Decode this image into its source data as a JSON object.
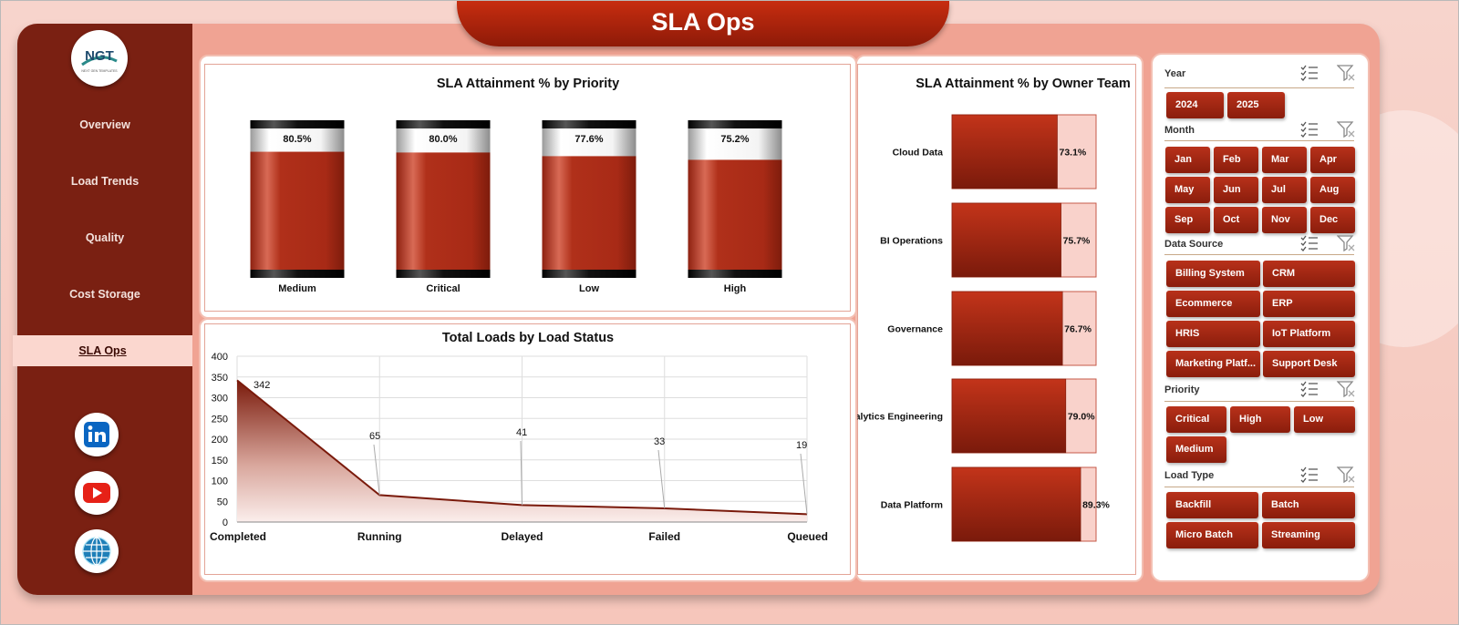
{
  "dashboard": {
    "title": "SLA Ops",
    "logo_text": "NGT",
    "logo_subtext": "NEXT GEN TEMPLATES"
  },
  "nav": {
    "items": [
      "Overview",
      "Load Trends",
      "Quality",
      "Cost Storage",
      "SLA Ops"
    ],
    "active": "SLA Ops"
  },
  "social": [
    "linkedin-icon",
    "youtube-icon",
    "globe-icon"
  ],
  "colors": {
    "accent": "#b2321a",
    "sidebar": "#7a2012",
    "panel": "#f0a393",
    "track": "#f9d2cb"
  },
  "filters": {
    "year": {
      "label": "Year",
      "options": [
        "2024",
        "2025"
      ]
    },
    "month": {
      "label": "Month",
      "options": [
        "Jan",
        "Feb",
        "Mar",
        "Apr",
        "May",
        "Jun",
        "Jul",
        "Aug",
        "Sep",
        "Oct",
        "Nov",
        "Dec"
      ]
    },
    "data_source": {
      "label": "Data Source",
      "options": [
        "Billing System",
        "CRM",
        "Ecommerce",
        "ERP",
        "HRIS",
        "IoT Platform",
        "Marketing Platf...",
        "Support Desk"
      ]
    },
    "priority": {
      "label": "Priority",
      "options": [
        "Critical",
        "High",
        "Low",
        "Medium"
      ]
    },
    "load_type": {
      "label": "Load Type",
      "options": [
        "Backfill",
        "Batch",
        "Micro Batch",
        "Streaming"
      ]
    }
  },
  "chart_data": [
    {
      "type": "bar",
      "title": "SLA Attainment % by Priority",
      "categories": [
        "Medium",
        "Critical",
        "Low",
        "High"
      ],
      "values": [
        80.5,
        80.0,
        77.6,
        75.2
      ],
      "data_labels": [
        "80.5%",
        "80.0%",
        "77.6%",
        "75.2%"
      ]
    },
    {
      "type": "bar",
      "orientation": "horizontal",
      "title": "SLA Attainment % by Owner Team",
      "categories": [
        "Cloud Data",
        "BI Operations",
        "Governance",
        "Analytics Engineering",
        "Data Platform"
      ],
      "values": [
        73.1,
        75.7,
        76.7,
        79.0,
        89.3
      ],
      "data_labels": [
        "73.1%",
        "75.7%",
        "76.7%",
        "79.0%",
        "89.3%"
      ]
    },
    {
      "type": "area",
      "title": "Total Loads by Load Status",
      "categories": [
        "Completed",
        "Running",
        "Delayed",
        "Failed",
        "Queued"
      ],
      "values": [
        342,
        65,
        41,
        33,
        19
      ],
      "ylim": [
        0,
        400
      ],
      "yticks": [
        0,
        50,
        100,
        150,
        200,
        250,
        300,
        350,
        400
      ],
      "grid": true
    }
  ]
}
